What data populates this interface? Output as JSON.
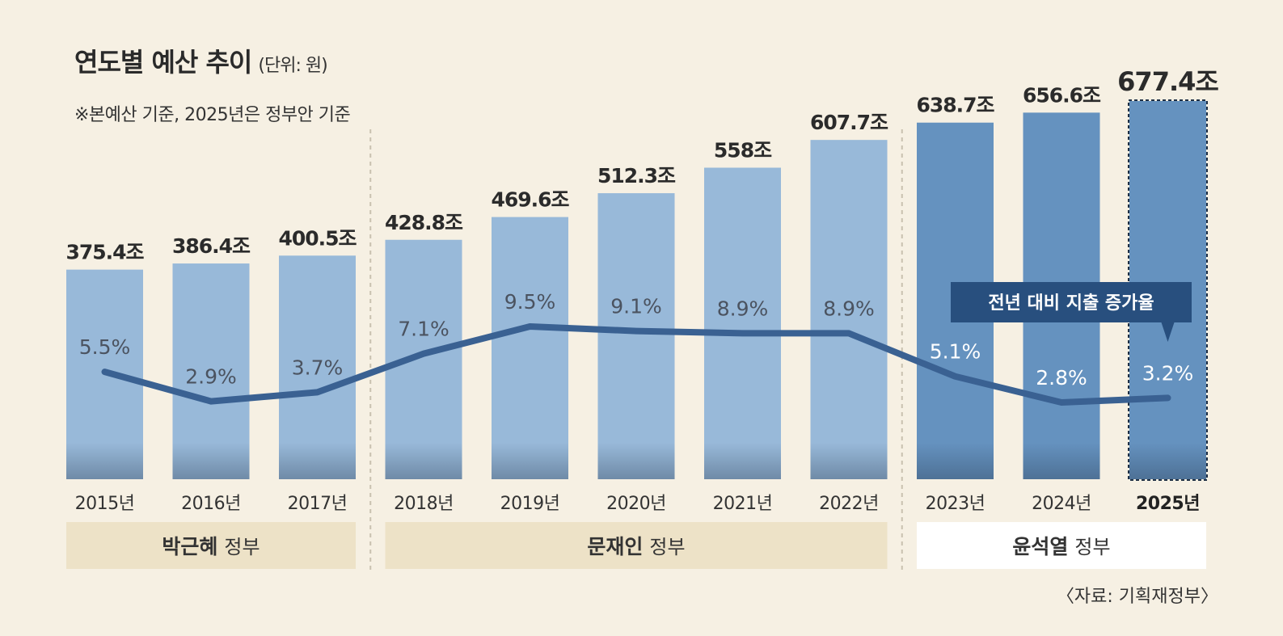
{
  "title": "연도별 예산 추이",
  "unit": "(단위: 원)",
  "note": "※본예산 기준, 2025년은 정부안 기준",
  "source": "〈자료: 기획재정부〉",
  "colors": {
    "bar_light": "#98b9d9",
    "bar_dark": "#6592bf",
    "line": "#3a6192",
    "legend_bg": "#284f7e",
    "gov_light_bg": "#ede2c7",
    "gov_white_bg": "#ffffff"
  },
  "chart_data": {
    "type": "bar+line",
    "categories": [
      "2015년",
      "2016년",
      "2017년",
      "2018년",
      "2019년",
      "2020년",
      "2021년",
      "2022년",
      "2023년",
      "2024년",
      "2025년"
    ],
    "series": [
      {
        "type": "bar",
        "values": [
          375.4,
          386.4,
          400.5,
          428.8,
          469.6,
          512.3,
          558,
          607.7,
          638.7,
          656.6,
          677.4
        ],
        "labels": [
          "375.4조",
          "386.4조",
          "400.5조",
          "428.8조",
          "469.6조",
          "512.3조",
          "558조",
          "607.7조",
          "638.7조",
          "656.6조",
          "677.4조"
        ]
      },
      {
        "type": "line",
        "name": "전년 대비 지출 증가율",
        "values": [
          5.5,
          2.9,
          3.7,
          7.1,
          9.5,
          9.1,
          8.9,
          8.9,
          5.1,
          2.8,
          3.2
        ],
        "labels": [
          "5.5%",
          "2.9%",
          "3.7%",
          "7.1%",
          "9.5%",
          "9.1%",
          "8.9%",
          "8.9%",
          "5.1%",
          "2.8%",
          "3.2%"
        ]
      }
    ],
    "highlight_index": 10,
    "governments": [
      {
        "name": "박근혜",
        "suffix": "정부",
        "start": 0,
        "end": 2
      },
      {
        "name": "문재인",
        "suffix": "정부",
        "start": 3,
        "end": 7
      },
      {
        "name": "윤석열",
        "suffix": "정부",
        "start": 8,
        "end": 10
      }
    ]
  }
}
